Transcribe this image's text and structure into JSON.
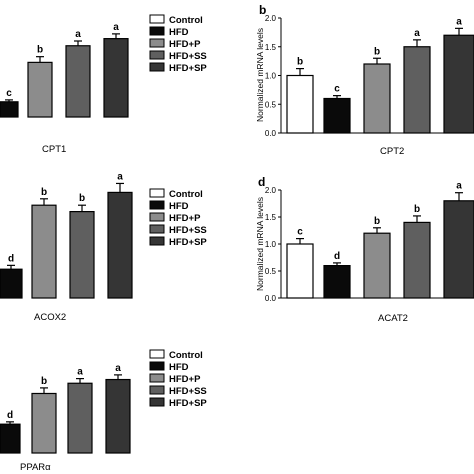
{
  "legend": {
    "entries": [
      "Control",
      "HFD",
      "HFD+P",
      "HFD+SS",
      "HFD+SP"
    ],
    "colors": [
      "#ffffff",
      "#0a0a0a",
      "#8c8c8c",
      "#5f5f5f",
      "#353535"
    ]
  },
  "chart_data": [
    {
      "type": "bar",
      "panel_label": "",
      "xlabel": "CPT1",
      "ylabel": "",
      "categories": [
        "HFD",
        "HFD+P",
        "HFD+SS",
        "HFD+SP"
      ],
      "values": [
        0.32,
        1.15,
        1.5,
        1.65
      ],
      "errors": [
        0.04,
        0.12,
        0.1,
        0.1
      ],
      "letters": [
        "c",
        "b",
        "a",
        "a"
      ],
      "ylim": [
        0,
        2.0
      ]
    },
    {
      "type": "bar",
      "panel_label": "b",
      "xlabel": "CPT2",
      "ylabel": "Normalized mRNA levels",
      "categories": [
        "Control",
        "HFD",
        "HFD+P",
        "HFD+SS",
        "HFD+SP"
      ],
      "values": [
        1.0,
        0.6,
        1.2,
        1.5,
        1.7
      ],
      "errors": [
        0.12,
        0.05,
        0.1,
        0.12,
        0.12
      ],
      "letters": [
        "b",
        "c",
        "b",
        "a",
        "a"
      ],
      "yticks": [
        "0.0",
        "0.5",
        "1.0",
        "1.5",
        "2.0"
      ],
      "ylim": [
        0,
        2.0
      ]
    },
    {
      "type": "bar",
      "panel_label": "",
      "xlabel": "ACOX2",
      "ylabel": "",
      "categories": [
        "HFD",
        "HFD+P",
        "HFD+SS",
        "HFD+SP"
      ],
      "values": [
        0.45,
        1.45,
        1.35,
        1.65
      ],
      "errors": [
        0.06,
        0.1,
        0.1,
        0.14
      ],
      "letters": [
        "d",
        "b",
        "b",
        "a"
      ],
      "ylim": [
        0,
        2.0
      ]
    },
    {
      "type": "bar",
      "panel_label": "d",
      "xlabel": "ACAT2",
      "ylabel": "Normalized mRNA levels",
      "categories": [
        "Control",
        "HFD",
        "HFD+P",
        "HFD+SS",
        "HFD+SP"
      ],
      "values": [
        1.0,
        0.6,
        1.2,
        1.4,
        1.8
      ],
      "errors": [
        0.1,
        0.05,
        0.1,
        0.12,
        0.15
      ],
      "letters": [
        "c",
        "d",
        "b",
        "b",
        "a"
      ],
      "yticks": [
        "0.0",
        "0.5",
        "1.0",
        "1.5",
        "2.0"
      ],
      "ylim": [
        0,
        2.0
      ]
    },
    {
      "type": "bar",
      "panel_label": "",
      "xlabel": "PPARα",
      "ylabel": "",
      "categories": [
        "HFD",
        "HFD+P",
        "HFD+SS",
        "HFD+SP"
      ],
      "values": [
        0.62,
        1.28,
        1.5,
        1.58
      ],
      "errors": [
        0.05,
        0.12,
        0.1,
        0.1
      ],
      "letters": [
        "d",
        "b",
        "a",
        "a"
      ],
      "ylim": [
        0,
        2.0
      ]
    }
  ]
}
